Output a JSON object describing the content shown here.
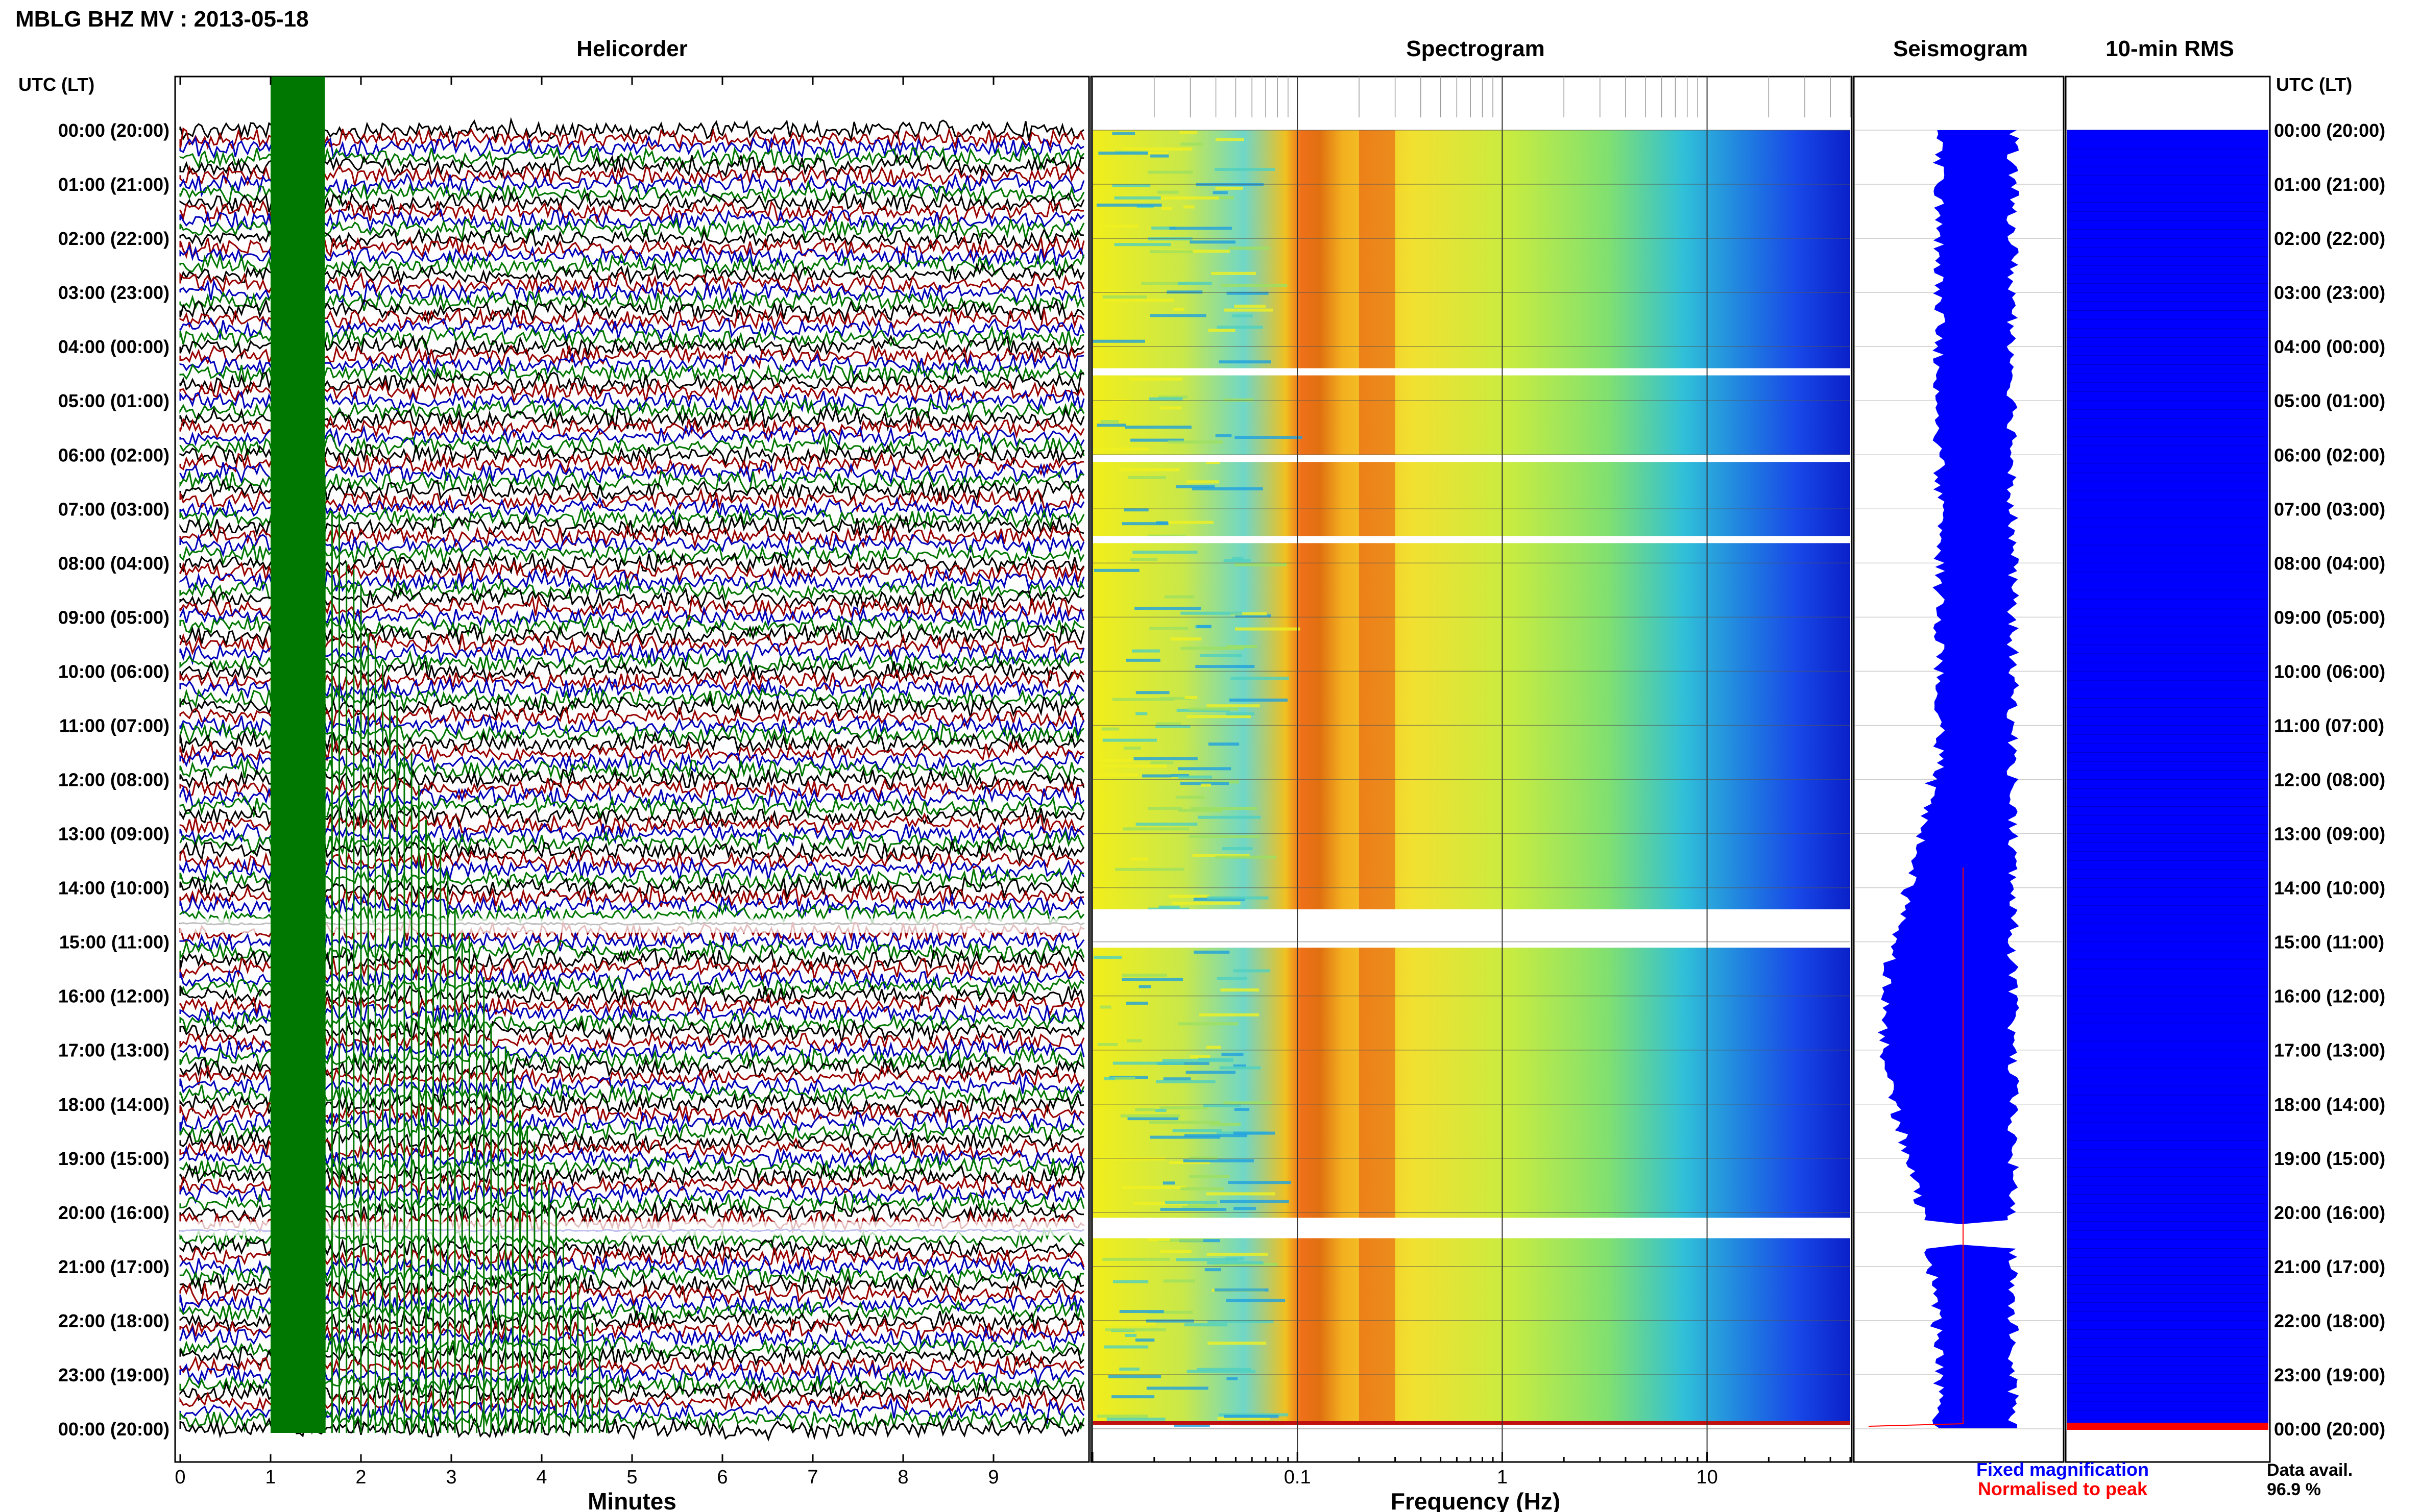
{
  "page": {
    "title": "MBLG BHZ MV : 2013-05-18",
    "panel_titles": {
      "helicorder": "Helicorder",
      "spectrogram": "Spectrogram",
      "seismogram": "Seismogram",
      "rms": "10-min RMS"
    },
    "axis_header_left": "UTC (LT)",
    "axis_header_right": "UTC (LT)",
    "xlabel_helicorder": "Minutes",
    "xlabel_spectrogram": "Frequency (Hz)",
    "legend": {
      "fixed": "Fixed magnification",
      "normalised": "Normalised to peak",
      "fixed_color": "#0000ff",
      "normalised_color": "#ff0000"
    },
    "data_avail": {
      "label": "Data avail.",
      "value": "96.9 %"
    }
  },
  "chart_data": [
    {
      "type": "line",
      "name": "helicorder",
      "title": "Helicorder",
      "xlabel": "Minutes",
      "xlim": [
        0,
        10
      ],
      "x_ticks": [
        "0",
        "1",
        "2",
        "3",
        "4",
        "5",
        "6",
        "7",
        "8",
        "9"
      ],
      "hour_labels": [
        "00:00 (20:00)",
        "01:00 (21:00)",
        "02:00 (22:00)",
        "03:00 (23:00)",
        "04:00 (00:00)",
        "05:00 (01:00)",
        "06:00 (02:00)",
        "07:00 (03:00)",
        "08:00 (04:00)",
        "09:00 (05:00)",
        "10:00 (06:00)",
        "11:00 (07:00)",
        "12:00 (08:00)",
        "13:00 (09:00)",
        "14:00 (10:00)",
        "15:00 (11:00)",
        "16:00 (12:00)",
        "17:00 (13:00)",
        "18:00 (14:00)",
        "19:00 (15:00)",
        "20:00 (16:00)",
        "21:00 (17:00)",
        "22:00 (18:00)",
        "23:00 (19:00)",
        "00:00 (20:00)"
      ],
      "trace_colors": [
        "#000000",
        "#990000",
        "#0000bb",
        "#007700"
      ],
      "lines_per_hour": 6,
      "event_minutes": [
        1.0,
        1.6
      ],
      "event_color": "#007700",
      "gap_hours": [
        14.7,
        20.3
      ]
    },
    {
      "type": "heatmap",
      "name": "spectrogram",
      "title": "Spectrogram",
      "xlabel": "Frequency (Hz)",
      "x_scale": "log",
      "xlim": [
        0.01,
        50
      ],
      "x_ticks": [
        "0.1",
        "1",
        "10"
      ],
      "peak_band_hz": [
        0.2,
        0.3
      ],
      "gap_hours": [
        4.4,
        6.0,
        7.5,
        14.4,
        20.1
      ]
    },
    {
      "type": "line",
      "name": "seismogram",
      "title": "Seismogram",
      "series": [
        {
          "name": "Fixed magnification",
          "color": "#0000ff"
        },
        {
          "name": "Normalised to peak",
          "color": "#ff0000"
        }
      ]
    },
    {
      "type": "bar",
      "name": "rms",
      "title": "10-min RMS",
      "color": "#0000ff",
      "highlight_color": "#ff0000"
    }
  ]
}
